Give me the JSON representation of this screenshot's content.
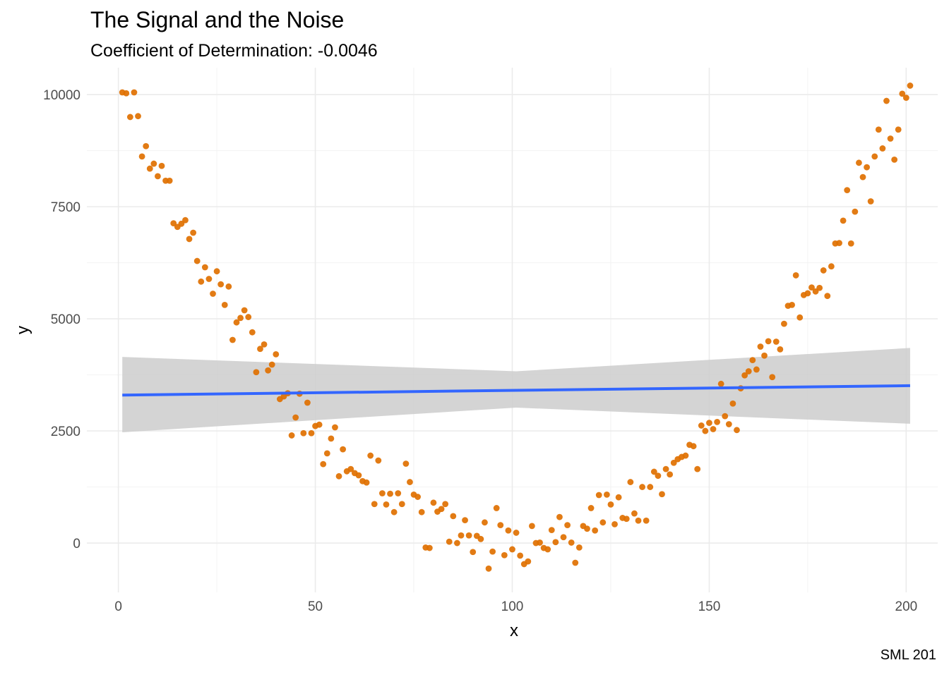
{
  "chart_data": {
    "type": "scatter",
    "title": "The Signal and the Noise",
    "subtitle": "Coefficient of Determination: -0.0046",
    "caption": "SML 201",
    "xlabel": "x",
    "ylabel": "y",
    "xlim": [
      -8,
      208
    ],
    "ylim": [
      -1100,
      10600
    ],
    "x_ticks": [
      "0",
      "50",
      "100",
      "150",
      "200"
    ],
    "y_ticks": [
      "0",
      "2500",
      "5000",
      "7500",
      "10000"
    ],
    "grid": true,
    "point_color": "#E07000",
    "line_color": "#3366FF",
    "band_color": "#CCCCCC",
    "fit_line": {
      "x": [
        1,
        201
      ],
      "y": [
        3300,
        3510
      ]
    },
    "confidence_band": {
      "x": [
        1,
        101,
        201
      ],
      "upper": [
        4150,
        3830,
        4350
      ],
      "lower": [
        2470,
        3020,
        2660
      ]
    },
    "points": [
      [
        1,
        10050
      ],
      [
        2,
        10030
      ],
      [
        3,
        9500
      ],
      [
        4,
        10050
      ],
      [
        5,
        9520
      ],
      [
        6,
        8620
      ],
      [
        7,
        8850
      ],
      [
        8,
        8350
      ],
      [
        9,
        8460
      ],
      [
        10,
        8180
      ],
      [
        11,
        8410
      ],
      [
        12,
        8080
      ],
      [
        13,
        8080
      ],
      [
        14,
        7130
      ],
      [
        15,
        7050
      ],
      [
        16,
        7120
      ],
      [
        17,
        7200
      ],
      [
        18,
        6780
      ],
      [
        19,
        6920
      ],
      [
        20,
        6290
      ],
      [
        21,
        5830
      ],
      [
        22,
        6150
      ],
      [
        23,
        5890
      ],
      [
        24,
        5560
      ],
      [
        25,
        6060
      ],
      [
        26,
        5770
      ],
      [
        27,
        5310
      ],
      [
        28,
        5720
      ],
      [
        29,
        4530
      ],
      [
        30,
        4920
      ],
      [
        31,
        5020
      ],
      [
        32,
        5190
      ],
      [
        33,
        5040
      ],
      [
        34,
        4700
      ],
      [
        35,
        3810
      ],
      [
        36,
        4330
      ],
      [
        37,
        4430
      ],
      [
        38,
        3850
      ],
      [
        39,
        3980
      ],
      [
        40,
        4210
      ],
      [
        41,
        3210
      ],
      [
        42,
        3270
      ],
      [
        43,
        3340
      ],
      [
        44,
        2400
      ],
      [
        45,
        2800
      ],
      [
        46,
        3330
      ],
      [
        47,
        2450
      ],
      [
        48,
        3130
      ],
      [
        49,
        2450
      ],
      [
        50,
        2610
      ],
      [
        51,
        2640
      ],
      [
        52,
        1760
      ],
      [
        53,
        2000
      ],
      [
        54,
        2330
      ],
      [
        55,
        2580
      ],
      [
        56,
        1490
      ],
      [
        57,
        2090
      ],
      [
        58,
        1600
      ],
      [
        59,
        1650
      ],
      [
        60,
        1560
      ],
      [
        61,
        1510
      ],
      [
        62,
        1380
      ],
      [
        63,
        1350
      ],
      [
        64,
        1950
      ],
      [
        65,
        870
      ],
      [
        66,
        1840
      ],
      [
        67,
        1110
      ],
      [
        68,
        860
      ],
      [
        69,
        1100
      ],
      [
        70,
        690
      ],
      [
        71,
        1110
      ],
      [
        72,
        870
      ],
      [
        73,
        1770
      ],
      [
        74,
        1360
      ],
      [
        75,
        1080
      ],
      [
        76,
        1030
      ],
      [
        77,
        690
      ],
      [
        78,
        -100
      ],
      [
        79,
        -110
      ],
      [
        80,
        900
      ],
      [
        81,
        700
      ],
      [
        82,
        760
      ],
      [
        83,
        870
      ],
      [
        84,
        30
      ],
      [
        85,
        600
      ],
      [
        86,
        0
      ],
      [
        87,
        170
      ],
      [
        88,
        510
      ],
      [
        89,
        170
      ],
      [
        90,
        -200
      ],
      [
        91,
        160
      ],
      [
        92,
        90
      ],
      [
        93,
        460
      ],
      [
        94,
        -570
      ],
      [
        95,
        -190
      ],
      [
        96,
        780
      ],
      [
        97,
        400
      ],
      [
        98,
        -270
      ],
      [
        99,
        280
      ],
      [
        100,
        -140
      ],
      [
        101,
        230
      ],
      [
        102,
        -280
      ],
      [
        103,
        -470
      ],
      [
        104,
        -410
      ],
      [
        105,
        380
      ],
      [
        106,
        0
      ],
      [
        107,
        10
      ],
      [
        108,
        -110
      ],
      [
        109,
        -140
      ],
      [
        110,
        290
      ],
      [
        111,
        20
      ],
      [
        112,
        580
      ],
      [
        113,
        130
      ],
      [
        114,
        400
      ],
      [
        115,
        10
      ],
      [
        116,
        -440
      ],
      [
        117,
        -100
      ],
      [
        118,
        380
      ],
      [
        119,
        320
      ],
      [
        120,
        780
      ],
      [
        121,
        280
      ],
      [
        122,
        1070
      ],
      [
        123,
        460
      ],
      [
        124,
        1080
      ],
      [
        125,
        860
      ],
      [
        126,
        420
      ],
      [
        127,
        1020
      ],
      [
        128,
        560
      ],
      [
        129,
        540
      ],
      [
        130,
        1360
      ],
      [
        131,
        660
      ],
      [
        132,
        500
      ],
      [
        133,
        1250
      ],
      [
        134,
        500
      ],
      [
        135,
        1250
      ],
      [
        136,
        1590
      ],
      [
        137,
        1500
      ],
      [
        138,
        1090
      ],
      [
        139,
        1650
      ],
      [
        140,
        1530
      ],
      [
        141,
        1790
      ],
      [
        142,
        1870
      ],
      [
        143,
        1920
      ],
      [
        144,
        1950
      ],
      [
        145,
        2190
      ],
      [
        146,
        2160
      ],
      [
        147,
        1650
      ],
      [
        148,
        2620
      ],
      [
        149,
        2500
      ],
      [
        150,
        2680
      ],
      [
        151,
        2540
      ],
      [
        152,
        2700
      ],
      [
        153,
        3550
      ],
      [
        154,
        2830
      ],
      [
        155,
        2650
      ],
      [
        156,
        3110
      ],
      [
        157,
        2520
      ],
      [
        158,
        3450
      ],
      [
        159,
        3740
      ],
      [
        160,
        3830
      ],
      [
        161,
        4080
      ],
      [
        162,
        3870
      ],
      [
        163,
        4380
      ],
      [
        164,
        4180
      ],
      [
        165,
        4500
      ],
      [
        166,
        3700
      ],
      [
        167,
        4490
      ],
      [
        168,
        4320
      ],
      [
        169,
        4890
      ],
      [
        170,
        5290
      ],
      [
        171,
        5310
      ],
      [
        172,
        5970
      ],
      [
        173,
        5030
      ],
      [
        174,
        5530
      ],
      [
        175,
        5570
      ],
      [
        176,
        5700
      ],
      [
        177,
        5610
      ],
      [
        178,
        5690
      ],
      [
        179,
        6080
      ],
      [
        180,
        5510
      ],
      [
        181,
        6170
      ],
      [
        182,
        6680
      ],
      [
        183,
        6690
      ],
      [
        184,
        7190
      ],
      [
        185,
        7870
      ],
      [
        186,
        6680
      ],
      [
        187,
        7390
      ],
      [
        188,
        8480
      ],
      [
        189,
        8160
      ],
      [
        190,
        8380
      ],
      [
        191,
        7620
      ],
      [
        192,
        8620
      ],
      [
        193,
        9220
      ],
      [
        194,
        8800
      ],
      [
        195,
        9860
      ],
      [
        196,
        9020
      ],
      [
        197,
        8550
      ],
      [
        198,
        9220
      ],
      [
        199,
        10020
      ],
      [
        200,
        9930
      ],
      [
        201,
        10200
      ]
    ]
  }
}
